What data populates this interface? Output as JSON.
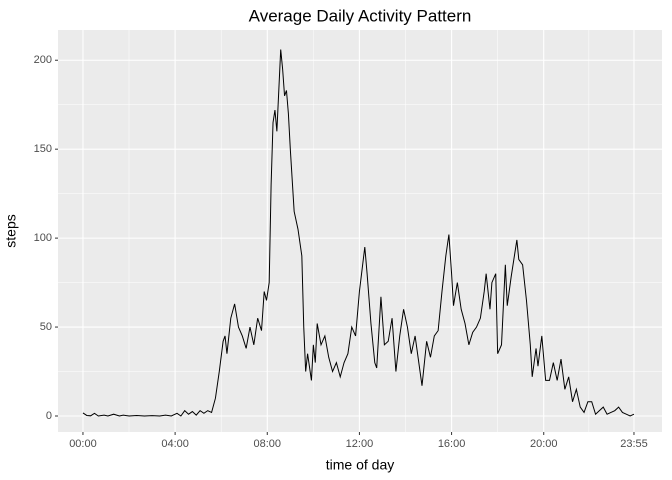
{
  "chart_data": {
    "type": "line",
    "title": "Average Daily Activity Pattern",
    "x_label": "time of day",
    "y_label": "steps",
    "x": [
      0,
      10,
      20,
      30,
      40,
      55,
      65,
      80,
      95,
      105,
      120,
      140,
      160,
      180,
      200,
      215,
      230,
      245,
      255,
      265,
      275,
      285,
      295,
      305,
      315,
      325,
      335,
      345,
      355,
      365,
      370,
      375,
      385,
      395,
      405,
      415,
      425,
      435,
      445,
      455,
      465,
      472,
      478,
      485,
      490,
      495,
      500,
      505,
      515,
      520,
      525,
      530,
      535,
      540,
      550,
      560,
      570,
      575,
      580,
      585,
      595,
      600,
      605,
      610,
      620,
      630,
      640,
      650,
      660,
      670,
      680,
      690,
      700,
      710,
      720,
      734,
      740,
      750,
      760,
      765,
      770,
      776,
      785,
      795,
      805,
      815,
      825,
      835,
      845,
      855,
      865,
      883,
      895,
      905,
      915,
      925,
      935,
      945,
      953,
      960,
      965,
      975,
      985,
      995,
      1005,
      1015,
      1025,
      1035,
      1045,
      1050,
      1060,
      1065,
      1075,
      1080,
      1090,
      1100,
      1105,
      1115,
      1130,
      1135,
      1145,
      1155,
      1165,
      1170,
      1180,
      1185,
      1195,
      1205,
      1215,
      1225,
      1235,
      1245,
      1255,
      1265,
      1275,
      1285,
      1295,
      1305,
      1315,
      1325,
      1335,
      1345,
      1355,
      1365,
      1375,
      1385,
      1395,
      1405,
      1415,
      1425,
      1435
    ],
    "series": [
      {
        "name": "steps",
        "color": "#000000",
        "values": [
          1.7,
          0.3,
          0.1,
          1.5,
          0,
          0.5,
          0,
          1,
          0,
          0.5,
          0,
          0.3,
          0,
          0.2,
          0,
          0.5,
          0,
          1.5,
          0,
          3,
          1,
          2.5,
          0.5,
          3,
          1.5,
          3,
          2,
          10,
          25,
          42,
          45,
          35,
          55,
          63,
          50,
          45,
          38,
          50,
          40,
          55,
          48,
          70,
          65,
          75,
          130,
          165,
          172,
          160,
          206,
          195,
          180,
          183,
          170,
          150,
          115,
          105,
          90,
          50,
          25,
          35,
          20,
          40,
          30,
          52,
          40,
          45,
          33,
          25,
          30,
          22,
          30,
          35,
          50,
          45,
          70,
          95,
          80,
          52,
          30,
          27,
          45,
          67,
          40,
          42,
          55,
          25,
          45,
          60,
          50,
          35,
          45,
          17,
          42,
          33,
          45,
          48,
          70,
          90,
          102,
          80,
          62,
          75,
          60,
          52,
          40,
          47,
          50,
          55,
          70,
          80,
          60,
          75,
          80,
          35,
          40,
          85,
          62,
          78,
          99,
          88,
          85,
          65,
          40,
          22,
          38,
          28,
          45,
          20,
          20,
          30,
          20,
          32,
          15,
          22,
          8,
          15,
          5,
          2,
          8,
          8,
          1,
          3,
          5,
          1,
          2,
          3,
          5,
          2,
          1,
          0,
          1
        ]
      }
    ],
    "xlim": [
      -65,
      1508
    ],
    "xticks": [
      {
        "value": 0,
        "label": "00:00"
      },
      {
        "value": 240,
        "label": "04:00"
      },
      {
        "value": 480,
        "label": "08:00"
      },
      {
        "value": 720,
        "label": "12:00"
      },
      {
        "value": 960,
        "label": "16:00"
      },
      {
        "value": 1200,
        "label": "20:00"
      },
      {
        "value": 1435,
        "label": "23:55"
      }
    ],
    "ylim": [
      -9,
      217
    ],
    "yticks": [
      0,
      50,
      100,
      150,
      200
    ],
    "grid": true
  }
}
